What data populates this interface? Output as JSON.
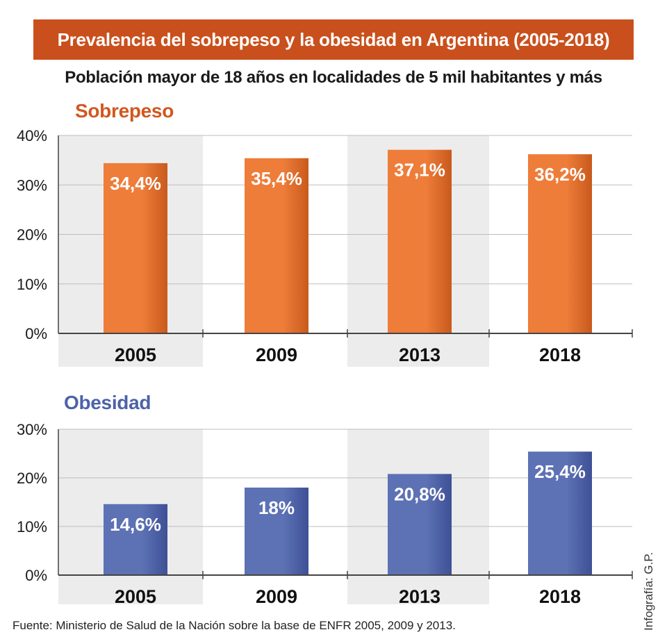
{
  "title": "Prevalencia del sobrepeso y la obesidad en Argentina (2005-2018)",
  "subtitle": "Población mayor de 18 años en localidades de 5 mil habitantes y más",
  "source": "Fuente: Ministerio de Salud de la Nación sobre la base de ENFR 2005, 2009 y 2013.",
  "credit": "Infografía: G.P.",
  "colors": {
    "banner": "#c9501c",
    "sobrepeso_bar": "#ee7d3a",
    "sobrepeso_bar_dark": "#c85a1c",
    "sobrepeso_label": "#d0581f",
    "obesidad_bar": "#5d72b5",
    "obesidad_bar_dark": "#3e5096",
    "obesidad_label": "#4d63a8",
    "band": "#ececec",
    "grid": "#bdbdbd"
  },
  "chart_data": [
    {
      "type": "bar",
      "title": "Sobrepeso",
      "categories": [
        "2005",
        "2009",
        "2013",
        "2018"
      ],
      "values": [
        34.4,
        35.4,
        37.1,
        36.2
      ],
      "value_labels": [
        "34,4%",
        "35,4%",
        "37,1%",
        "36,2%"
      ],
      "yticks": [
        0,
        10,
        20,
        30,
        40
      ],
      "ytick_labels": [
        "0%",
        "10%",
        "20%",
        "30%",
        "40%"
      ],
      "ylim": [
        0,
        40
      ],
      "grid": true
    },
    {
      "type": "bar",
      "title": "Obesidad",
      "categories": [
        "2005",
        "2009",
        "2013",
        "2018"
      ],
      "values": [
        14.6,
        18,
        20.8,
        25.4
      ],
      "value_labels": [
        "14,6%",
        "18%",
        "20,8%",
        "25,4%"
      ],
      "yticks": [
        0,
        10,
        20,
        30
      ],
      "ytick_labels": [
        "0%",
        "10%",
        "20%",
        "30%"
      ],
      "ylim": [
        0,
        30
      ],
      "grid": true
    }
  ]
}
